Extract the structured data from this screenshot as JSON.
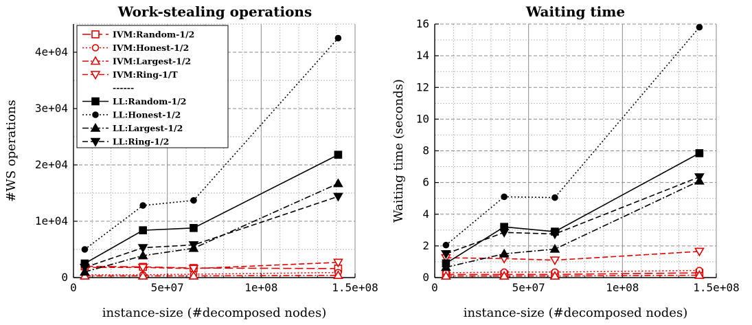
{
  "chart_data": [
    {
      "type": "line",
      "title": "Work-stealing operations",
      "xlabel": "instance-size (#decomposed nodes)",
      "ylabel": "#WS operations",
      "xlim": [
        0,
        150000000
      ],
      "ylim": [
        0,
        45000
      ],
      "xticks": [
        0,
        50000000,
        100000000,
        150000000
      ],
      "xtick_labels": [
        "0",
        "5e+07",
        "1e+08",
        "1.5e+08"
      ],
      "yticks": [
        0,
        10000,
        20000,
        30000,
        40000
      ],
      "ytick_labels": [
        "0",
        "1e+04",
        "2e+04",
        "3e+04",
        "4e+04"
      ],
      "grid": true,
      "legend_position": "top-left",
      "legend_separator": "------",
      "x": [
        6000000,
        37000000,
        64000000,
        141000000
      ],
      "series": [
        {
          "name": "IVM:Random-1/2",
          "color": "#e00000",
          "dash": "long",
          "marker": "square-open",
          "values": [
            2000,
            1900,
            1700,
            1600
          ]
        },
        {
          "name": "IVM:Honest-1/2",
          "color": "#e00000",
          "dash": "dotted",
          "marker": "circle-open",
          "values": [
            500,
            500,
            600,
            900
          ]
        },
        {
          "name": "IVM:Largest-1/2",
          "color": "#e00000",
          "dash": "dashdot",
          "marker": "triangle-up-open",
          "values": [
            300,
            300,
            300,
            400
          ]
        },
        {
          "name": "IVM:Ring-1/T",
          "color": "#e00000",
          "dash": "dashed",
          "marker": "triangle-down-open",
          "values": [
            1800,
            1800,
            1600,
            2700
          ]
        },
        {
          "name": "LL:Random-1/2",
          "color": "#000000",
          "dash": "solid",
          "marker": "square-filled",
          "values": [
            2500,
            8400,
            8800,
            21800
          ]
        },
        {
          "name": "LL:Honest-1/2",
          "color": "#000000",
          "dash": "dotted",
          "marker": "circle-filled",
          "values": [
            5000,
            12800,
            13700,
            42500
          ]
        },
        {
          "name": "LL:Largest-1/2",
          "color": "#000000",
          "dash": "dashdot",
          "marker": "triangle-up-filled",
          "values": [
            1000,
            3900,
            5200,
            16700
          ]
        },
        {
          "name": "LL:Ring-1/2",
          "color": "#000000",
          "dash": "dashed",
          "marker": "triangle-down-filled",
          "values": [
            1800,
            5300,
            5800,
            14400
          ]
        }
      ]
    },
    {
      "type": "line",
      "title": "Waiting time",
      "xlabel": "instance-size (#decomposed nodes)",
      "ylabel": "Waiting time (seconds)",
      "xlim": [
        0,
        150000000
      ],
      "ylim": [
        0,
        16
      ],
      "xticks": [
        0,
        50000000,
        100000000,
        150000000
      ],
      "xtick_labels": [
        "0",
        "5e+07",
        "1e+08",
        "1.5e+08"
      ],
      "yticks": [
        0,
        2,
        4,
        6,
        8,
        10,
        12,
        14,
        16
      ],
      "ytick_labels": [
        "0",
        "2",
        "4",
        "6",
        "8",
        "10",
        "12",
        "14",
        "16"
      ],
      "grid": true,
      "x": [
        6000000,
        37000000,
        64000000,
        141000000
      ],
      "series": [
        {
          "name": "IVM:Random-1/2",
          "color": "#e00000",
          "dash": "long",
          "marker": "square-open",
          "values": [
            0.2,
            0.2,
            0.2,
            0.3
          ]
        },
        {
          "name": "IVM:Honest-1/2",
          "color": "#e00000",
          "dash": "dotted",
          "marker": "circle-open",
          "values": [
            0.3,
            0.35,
            0.35,
            0.45
          ]
        },
        {
          "name": "IVM:Largest-1/2",
          "color": "#e00000",
          "dash": "dashdot",
          "marker": "triangle-up-open",
          "values": [
            0.1,
            0.1,
            0.1,
            0.15
          ]
        },
        {
          "name": "IVM:Ring-1/T",
          "color": "#e00000",
          "dash": "dashed",
          "marker": "triangle-down-open",
          "values": [
            1.25,
            1.2,
            1.1,
            1.65
          ]
        },
        {
          "name": "LL:Random-1/2",
          "color": "#000000",
          "dash": "solid",
          "marker": "square-filled",
          "values": [
            0.9,
            3.2,
            2.9,
            7.85
          ]
        },
        {
          "name": "LL:Honest-1/2",
          "color": "#000000",
          "dash": "dotted",
          "marker": "circle-filled",
          "values": [
            2.05,
            5.1,
            5.05,
            15.8
          ]
        },
        {
          "name": "LL:Largest-1/2",
          "color": "#000000",
          "dash": "dashdot",
          "marker": "triangle-up-filled",
          "values": [
            0.65,
            1.5,
            1.8,
            6.1
          ]
        },
        {
          "name": "LL:Ring-1/2",
          "color": "#000000",
          "dash": "dashed",
          "marker": "triangle-down-filled",
          "values": [
            1.5,
            2.85,
            2.75,
            6.35
          ]
        }
      ]
    }
  ]
}
